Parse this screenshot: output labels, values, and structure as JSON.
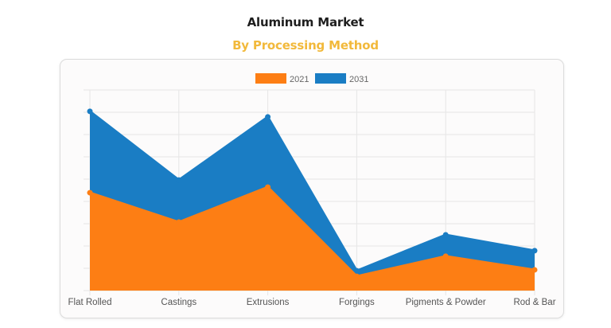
{
  "header": {
    "title": "Aluminum Market",
    "subtitle": "By Processing Method"
  },
  "colors": {
    "series_2021": "#fd7e14",
    "series_2031": "#1a7dc4",
    "subtitle": "#f2b93b",
    "grid": "#e6e6e6"
  },
  "legend": {
    "items": [
      {
        "label": "2021",
        "color": "#fd7e14"
      },
      {
        "label": "2031",
        "color": "#1a7dc4"
      }
    ]
  },
  "chart_data": {
    "type": "area",
    "title": "Aluminum Market",
    "subtitle": "By Processing Method",
    "xlabel": "",
    "ylabel": "",
    "categories": [
      "Flat Rolled",
      "Castings",
      "Extrusions",
      "Forgings",
      "Pigments & Powder",
      "Rod & Bar"
    ],
    "series": [
      {
        "name": "2021",
        "color": "#fd7e14",
        "values": [
          4.39,
          3.07,
          4.64,
          0.64,
          1.54,
          0.93
        ]
      },
      {
        "name": "2031",
        "color": "#1a7dc4",
        "values": [
          8.04,
          4.96,
          7.79,
          0.89,
          2.5,
          1.79
        ]
      }
    ],
    "ylim": [
      0,
      9
    ],
    "y_tick_labels_visible": false,
    "y_units": "relative (no axis labels shown)",
    "grid": true,
    "legend_position": "top",
    "stacked": false,
    "fill": true
  }
}
